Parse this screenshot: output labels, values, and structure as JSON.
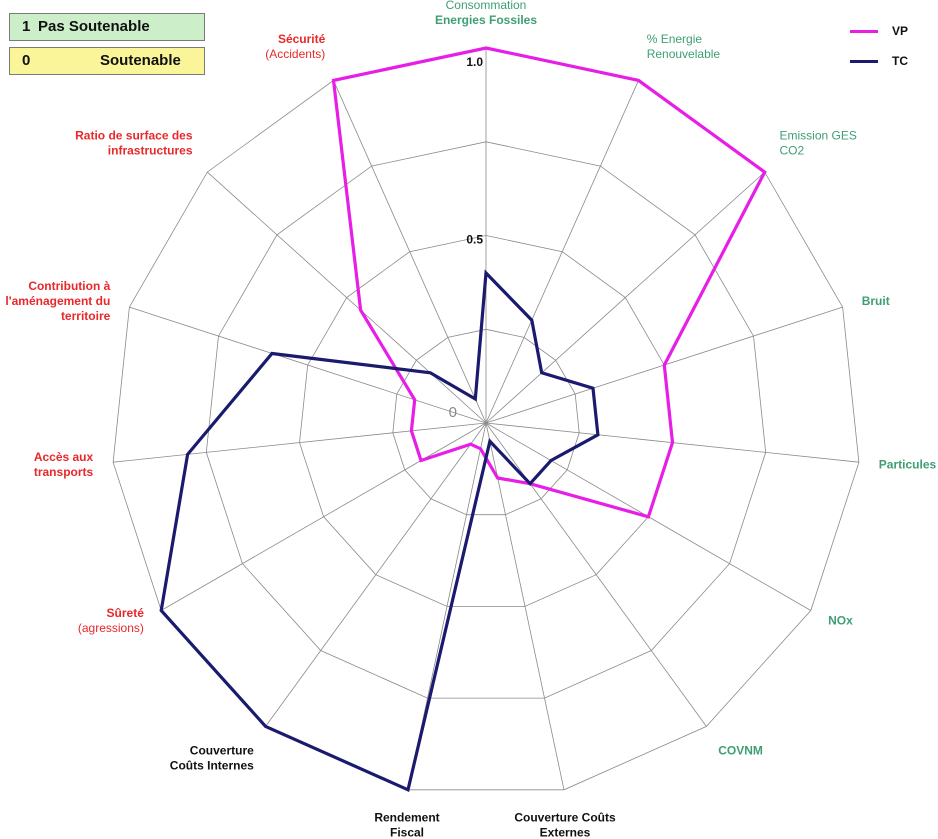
{
  "legend_boxes": [
    {
      "num": "1",
      "text": "Pas Soutenable",
      "color": "#ccefc9"
    },
    {
      "num": "0",
      "text": "Soutenable",
      "color": "#fbf59a"
    }
  ],
  "colors": {
    "green": "#3d9f73",
    "red": "#e8282a",
    "black": "#111111",
    "vp": "#e61ee6",
    "tc": "#1a1a6e",
    "grid": "#8a8a8a"
  },
  "chart_data": {
    "type": "radar",
    "axis_labels": [
      {
        "lines": [
          "Consommation",
          "Energies Fossiles"
        ],
        "color": "green",
        "bold": [
          false,
          true
        ]
      },
      {
        "lines": [
          "% Energie",
          "Renouvelable"
        ],
        "color": "green",
        "bold": [
          false,
          false
        ]
      },
      {
        "lines": [
          "Emission GES",
          "CO2"
        ],
        "color": "green",
        "bold": [
          false,
          false
        ]
      },
      {
        "lines": [
          "Bruit"
        ],
        "color": "green",
        "bold": [
          true
        ]
      },
      {
        "lines": [
          "Particules"
        ],
        "color": "green",
        "bold": [
          true
        ]
      },
      {
        "lines": [
          "NOx"
        ],
        "color": "green",
        "bold": [
          true
        ]
      },
      {
        "lines": [
          "COVNM"
        ],
        "color": "green",
        "bold": [
          true
        ]
      },
      {
        "lines": [
          "Couverture Coûts",
          "Externes"
        ],
        "color": "black",
        "bold": [
          true,
          true
        ]
      },
      {
        "lines": [
          "Rendement",
          "Fiscal"
        ],
        "color": "black",
        "bold": [
          true,
          true
        ]
      },
      {
        "lines": [
          "Couverture",
          "Coûts Internes"
        ],
        "color": "black",
        "bold": [
          true,
          true
        ]
      },
      {
        "lines": [
          "Sûreté",
          "(agressions)"
        ],
        "color": "red",
        "bold": [
          true,
          false
        ]
      },
      {
        "lines": [
          "Accès aux",
          "transports"
        ],
        "color": "red",
        "bold": [
          true,
          true
        ]
      },
      {
        "lines": [
          "Contribution à",
          "l'aménagement du",
          "territoire"
        ],
        "color": "red",
        "bold": [
          true,
          true,
          true
        ]
      },
      {
        "lines": [
          "Ratio de surface des",
          "infrastructures"
        ],
        "color": "red",
        "bold": [
          true,
          true
        ]
      },
      {
        "lines": [
          "Sécurité",
          "(Accidents)"
        ],
        "color": "red",
        "bold": [
          true,
          false
        ]
      }
    ],
    "scale_labels": [
      "0",
      "0.5",
      "1.0"
    ],
    "rmax": 1.0,
    "series": [
      {
        "name": "VP",
        "color": "#e61ee6",
        "values": [
          1.0,
          1.0,
          1.0,
          0.5,
          0.5,
          0.5,
          0.2,
          0.15,
          0.07,
          0.07,
          0.2,
          0.2,
          0.2,
          0.45,
          1.0
        ]
      },
      {
        "name": "TC",
        "color": "#1a1a6e",
        "values": [
          0.4,
          0.3,
          0.2,
          0.3,
          0.3,
          0.2,
          0.2,
          0.05,
          1.0,
          1.0,
          1.0,
          0.8,
          0.6,
          0.2,
          0.07
        ]
      }
    ]
  }
}
